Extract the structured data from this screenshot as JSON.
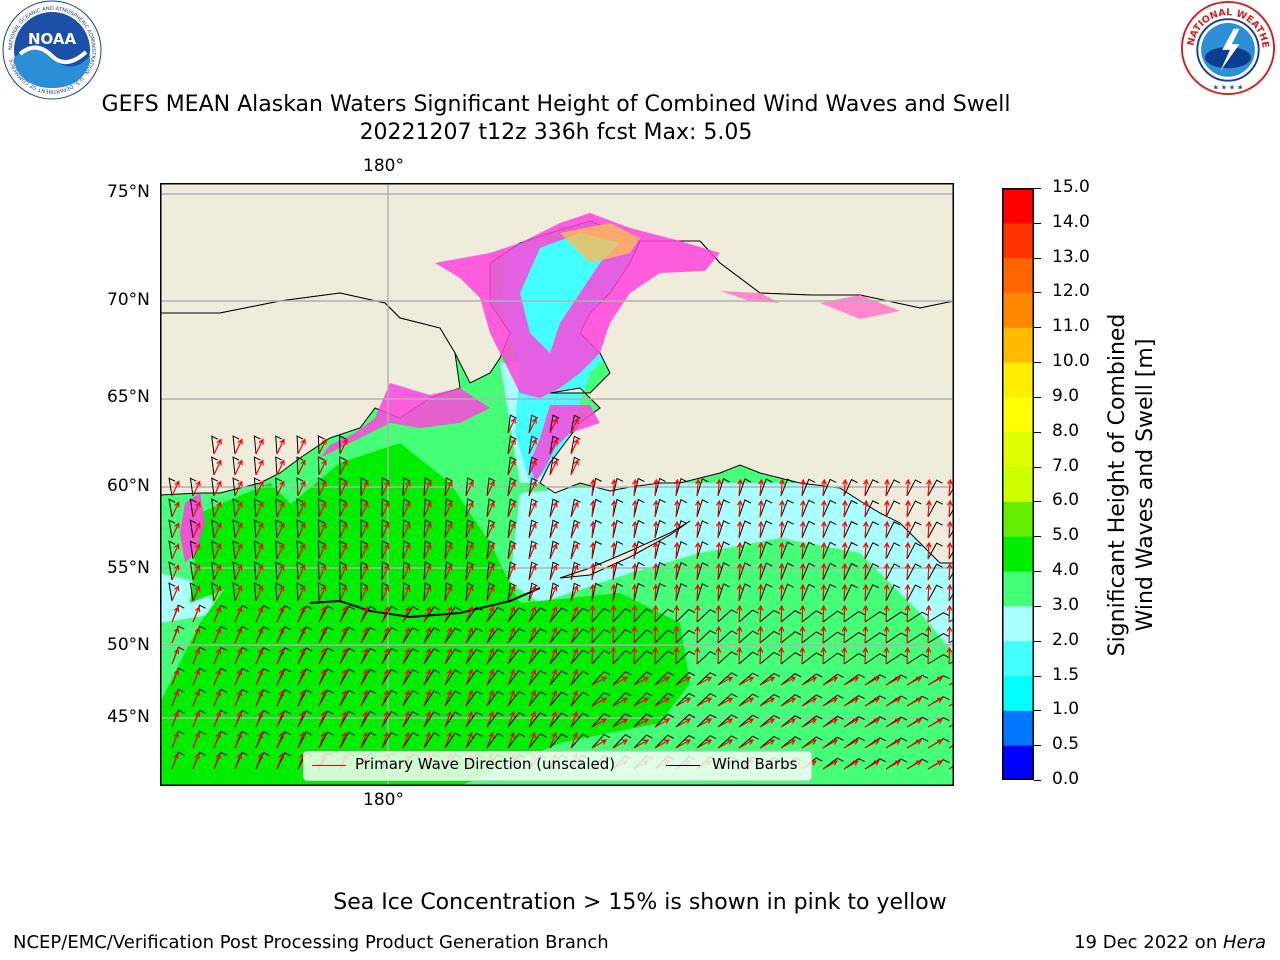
{
  "title": {
    "line1": "GEFS MEAN Alaskan Waters Significant Height of Combined Wind Waves and Swell",
    "line2": "20221207 t12z 336h fcst   Max: 5.05"
  },
  "logos": {
    "left": {
      "text": "NOAA",
      "ring_text": "NATIONAL OCEANIC AND ATMOSPHERIC ADMINISTRATION · U.S. DEPARTMENT OF COMMERCE"
    },
    "right": {
      "ring_text": "NATIONAL WEATHER SERVICE"
    }
  },
  "map": {
    "lon_labels_top": [
      "180°"
    ],
    "lon_labels_bottom": [
      "180°"
    ],
    "lat_labels": [
      "75°N",
      "70°N",
      "65°N",
      "60°N",
      "55°N",
      "50°N",
      "45°N"
    ],
    "lat_values": [
      75,
      70,
      65,
      60,
      55,
      50,
      45
    ],
    "lon_values": [
      180
    ],
    "land_color": "#efecdc",
    "ice_colors": [
      "#ff44dd",
      "#ff88cc",
      "#ffbb55",
      "#ffee00"
    ],
    "wave_arrow_color": "#ff0000",
    "wind_barb_color": "#000000",
    "legend": {
      "wave_label": "Primary Wave Direction (unscaled)",
      "wind_label": "Wind Barbs"
    }
  },
  "colorbar": {
    "title_line1": "Significant Height of Combined",
    "title_line2": "Wind Waves and Swell [m]",
    "ticks": [
      "0.0",
      "0.5",
      "1.0",
      "1.5",
      "2.0",
      "3.0",
      "4.0",
      "5.0",
      "6.0",
      "7.0",
      "8.0",
      "9.0",
      "10.0",
      "11.0",
      "12.0",
      "13.0",
      "14.0",
      "15.0"
    ],
    "colors": [
      "#0000ff",
      "#0077ff",
      "#00ffff",
      "#44ffff",
      "#aaffff",
      "#44ff77",
      "#00ee00",
      "#66ee00",
      "#ccff00",
      "#ddff00",
      "#ffff00",
      "#ffee00",
      "#ffbb00",
      "#ff8800",
      "#ff6600",
      "#ff3300",
      "#ff0000"
    ]
  },
  "caption": "Sea Ice Concentration > 15% is shown in pink to yellow",
  "credits": {
    "left": "NCEP/EMC/Verification Post Processing Product Generation Branch",
    "right_prefix": "19 Dec 2022 on ",
    "right_host": "Hera"
  }
}
